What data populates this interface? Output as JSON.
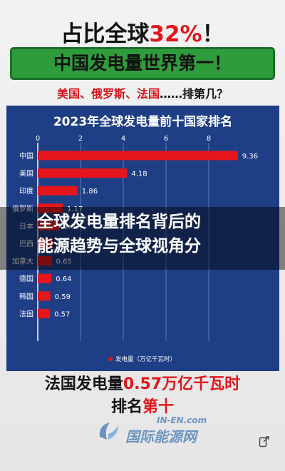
{
  "headline": {
    "part1": "占比全球",
    "pct": "32%",
    "part2": "！"
  },
  "banner": "中国发电量世界第一！",
  "subtitle": {
    "part1": "美国、俄罗斯、法国",
    "part2": "……排第几？"
  },
  "chart_data": {
    "type": "bar",
    "orientation": "horizontal",
    "title": "2023年全球发电量前十国家排名",
    "categories": [
      "中国",
      "美国",
      "印度",
      "俄罗斯",
      "日本",
      "巴西",
      "加拿大",
      "德国",
      "韩国",
      "法国"
    ],
    "series": [
      {
        "name": "发电量（万亿千瓦时）",
        "values": [
          9.36,
          4.18,
          1.86,
          1.17,
          1.02,
          0.7,
          0.65,
          0.64,
          0.59,
          0.57
        ]
      }
    ],
    "value_labels": [
      "9.36",
      "4.18",
      "1.86",
      "1.17",
      "1.02",
      "0.7",
      "0.65",
      "0.64",
      "0.59",
      "0.57"
    ],
    "xticks": [
      "0",
      "2",
      "4",
      "6",
      "8"
    ],
    "xlim": [
      0,
      10
    ],
    "legend_position": "bottom-center",
    "grid": true,
    "colors": {
      "bar": "#e5161c",
      "panel": "#1e3e86",
      "grid": "#5f7cb8",
      "text": "#ffffff"
    }
  },
  "overlay_text": "全球发电量排名背后的\n能源趋势与全球视角分",
  "bottom_line1": {
    "part1": "法国",
    "part2": "发电量",
    "part3": "0.57万亿千瓦时"
  },
  "bottom_line2": {
    "part1": "排名",
    "part2": "第十"
  },
  "logo": {
    "en": "IN-EN.com",
    "cn": "国际能源网"
  },
  "icons": [
    "logo-icon",
    "share-icon"
  ]
}
